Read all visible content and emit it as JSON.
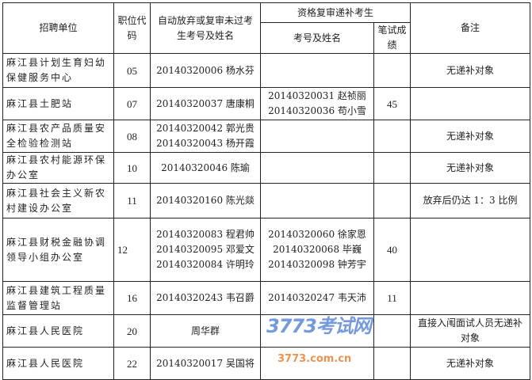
{
  "header": {
    "unit": "招聘单位",
    "code": "职位代码",
    "abandoned": "自动放弃或复审未过考生考号及姓名",
    "supplement_group": "资格复审递补考生",
    "supplement_id_name": "考号及姓名",
    "score": "笔试成绩",
    "remark": "备注"
  },
  "rows": [
    {
      "unit": "麻江县计划生育妇幼保健服务中心",
      "code": "05",
      "abandoned": [
        "20140320006 杨水芬"
      ],
      "supplement": [],
      "score": "",
      "remark": "无递补对象"
    },
    {
      "unit": "麻江县土肥站",
      "code": "07",
      "abandoned": [
        "20140320037 唐康桐"
      ],
      "supplement": [
        "20140320031 赵祯丽",
        "20140320036 苟小雪"
      ],
      "score": "45",
      "remark": ""
    },
    {
      "unit": "麻江县农产品质量安全检验检测站",
      "code": "08",
      "abandoned": [
        "20140320042 郭光贵",
        "20140320043 杨开霞"
      ],
      "supplement": [],
      "score": "",
      "remark": "无递补对象"
    },
    {
      "unit": "麻江县农村能源环保办公室",
      "code": "10",
      "abandoned": [
        "20140320046 陈瑜"
      ],
      "supplement": [],
      "score": "",
      "remark": "无递补对象"
    },
    {
      "unit": "麻江县社会主义新农村建设办公室",
      "code": "11",
      "abandoned": [
        "20140320160 陈光燚"
      ],
      "supplement": [],
      "score": "",
      "remark": "放弃后仍达 1：3 比例"
    },
    {
      "unit": "麻江县财税金融协调领导小组办公室",
      "code": "12",
      "abandoned": [
        "20140320083 程君帅",
        "20140320095 邓爱文",
        "20140320084 许明玲"
      ],
      "supplement": [
        "20140320060 徐家恩",
        "20140320068 毕巍",
        "20140320098 钟芳宇"
      ],
      "score": "40",
      "remark": ""
    },
    {
      "unit": "麻江县建筑工程质量监督管理站",
      "code": "16",
      "abandoned": [
        "20140320243 韦召爵"
      ],
      "supplement": [
        "20140320247 韦天沛"
      ],
      "score": "11",
      "remark": ""
    },
    {
      "unit": "麻江县人民医院",
      "code": "20",
      "abandoned": [
        "周华群"
      ],
      "supplement": [],
      "score": "",
      "remark": "直接入闱面试人员无递补对象"
    },
    {
      "unit": "麻江县人民医院",
      "code": "22",
      "abandoned": [
        "20140320017 吴国将"
      ],
      "supplement": [],
      "score": "",
      "remark": "无递补对象"
    }
  ],
  "watermark": {
    "logo": "3773考试网",
    "url": "3773.com.cn"
  }
}
